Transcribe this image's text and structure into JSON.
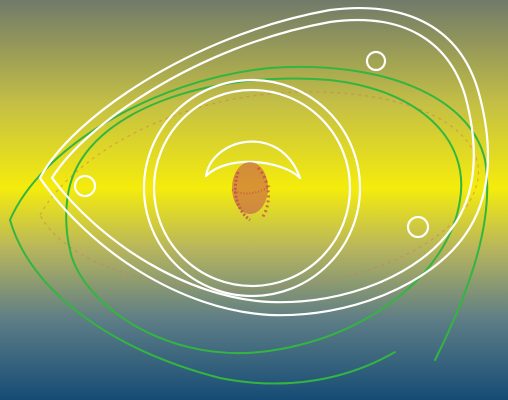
{
  "artwork": {
    "subject": "abstract-eye-line-art",
    "colors": {
      "gradient_top": "#707a6a",
      "gradient_upper": "#c4bf45",
      "gradient_center": "#f5ec0c",
      "gradient_lower": "#b8b65c",
      "gradient_mid_low": "#5d7d86",
      "gradient_bottom": "#154c75",
      "outline_white": "#ffffff",
      "outline_green": "#33b540",
      "pupil_red": "#c14a52",
      "faint_red": "#d4775d"
    }
  }
}
